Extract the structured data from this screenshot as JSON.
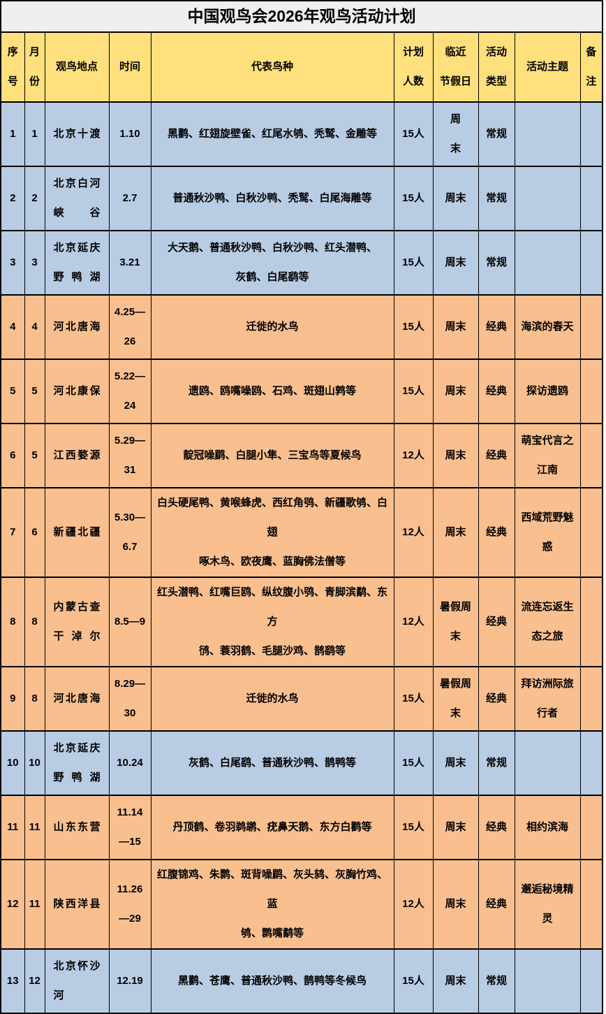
{
  "title": "中国观鸟会2026年观鸟活动计划",
  "colors": {
    "regular_row_blue": "#b8cce4",
    "classic_row_orange": "#fabf8f",
    "header_yellow": "#ffe07d",
    "title_gray": "#efefef",
    "border_black": "#000000"
  },
  "table": {
    "headers": {
      "no": "序\n号",
      "month": "月\n份",
      "location": "观鸟地点",
      "time": "时间",
      "species": "代表鸟种",
      "count": "计划\n人数",
      "holiday": "临近\n节假日",
      "type": "活动\n类型",
      "theme": "活动主题",
      "note": "备\n注"
    },
    "rows": [
      {
        "no": "1",
        "month": "1",
        "location": "北京十渡",
        "time": "1.10",
        "species": "黑鹳、红翅旋壁雀、红尾水鸲、秃鹫、金雕等",
        "count": "15人",
        "holiday": "周\n末",
        "type": "常规",
        "theme": "",
        "note": "",
        "variant": "blue"
      },
      {
        "no": "2",
        "month": "2",
        "location": "北京白河\n峡谷",
        "time": "2.7",
        "species": "普通秋沙鸭、白秋沙鸭、秃鹫、白尾海雕等",
        "count": "15人",
        "holiday": "周末",
        "type": "常规",
        "theme": "",
        "note": "",
        "variant": "blue"
      },
      {
        "no": "3",
        "month": "3",
        "location": "北京延庆\n野鸭湖",
        "time": "3.21",
        "species": "大天鹅、普通秋沙鸭、白秋沙鸭、红头潜鸭、\n灰鹤、白尾鹞等",
        "count": "15人",
        "holiday": "周末",
        "type": "常规",
        "theme": "",
        "note": "",
        "variant": "blue"
      },
      {
        "no": "4",
        "month": "4",
        "location": "河北唐海",
        "time": "4.25—\n26",
        "species": "迁徙的水鸟",
        "count": "15人",
        "holiday": "周末",
        "type": "经典",
        "theme": "海滨的春天",
        "note": "",
        "variant": "orange"
      },
      {
        "no": "5",
        "month": "5",
        "location": "河北康保",
        "time": "5.22—\n24",
        "species": "遗鸥、鸥嘴噪鸥、石鸡、斑翅山鹑等",
        "count": "15人",
        "holiday": "周末",
        "type": "经典",
        "theme": "探访遗鸥",
        "note": "",
        "variant": "orange"
      },
      {
        "no": "6",
        "month": "5",
        "location": "江西婺源",
        "time": "5.29—\n31",
        "species": "靛冠噪鹛、白腿小隼、三宝鸟等夏候鸟",
        "count": "12人",
        "holiday": "周末",
        "type": "经典",
        "theme": "萌宝代言之\n江南",
        "note": "",
        "variant": "orange"
      },
      {
        "no": "7",
        "month": "6",
        "location": "新疆北疆",
        "time": "5.30—\n6.7",
        "species": "白头硬尾鸭、黄喉蜂虎、西红角鸮、新疆歌鸲、白翅\n啄木鸟、欧夜鹰、蓝胸佛法僧等",
        "count": "12人",
        "holiday": "周末",
        "type": "经典",
        "theme": "西域荒野魅\n惑",
        "note": "",
        "variant": "orange"
      },
      {
        "no": "8",
        "month": "8",
        "location": "内蒙古查\n干淖尔",
        "time": "8.5—9",
        "species": "红头潜鸭、红嘴巨鸥、纵纹腹小鸮、青脚滨鹬、东方\n鸻、蓑羽鹤、毛腿沙鸡、鹊鹞等",
        "count": "12人",
        "holiday": "暑假周\n末",
        "type": "经典",
        "theme": "流连忘返生\n态之旅",
        "note": "",
        "variant": "orange"
      },
      {
        "no": "9",
        "month": "8",
        "location": "河北唐海",
        "time": "8.29—\n30",
        "species": "迁徙的水鸟",
        "count": "15人",
        "holiday": "暑假周\n末",
        "type": "经典",
        "theme": "拜访洲际旅\n行者",
        "note": "",
        "variant": "orange"
      },
      {
        "no": "10",
        "month": "10",
        "location": "北京延庆\n野鸭湖",
        "time": "10.24",
        "species": "灰鹤、白尾鹞、普通秋沙鸭、鹊鸭等",
        "count": "15人",
        "holiday": "周末",
        "type": "常规",
        "theme": "",
        "note": "",
        "variant": "blue"
      },
      {
        "no": "11",
        "month": "11",
        "location": "山东东营",
        "time": "11.14\n—15",
        "species": "丹顶鹤、卷羽鹈鹕、疣鼻天鹅、东方白鹳等",
        "count": "15人",
        "holiday": "周末",
        "type": "经典",
        "theme": "相约滨海",
        "note": "",
        "variant": "orange"
      },
      {
        "no": "12",
        "month": "11",
        "location": "陕西洋县",
        "time": "11.26\n—29",
        "species": "红腹锦鸡、朱鹮、斑背噪鹛、灰头鸫、灰胸竹鸡、蓝\n鸲、鹮嘴鹬等",
        "count": "12人",
        "holiday": "周末",
        "type": "经典",
        "theme": "邂逅秘境精\n灵",
        "note": "",
        "variant": "orange"
      },
      {
        "no": "13",
        "month": "12",
        "location": "北京怀沙\n河",
        "time": "12.19",
        "species": "黑鹳、苍鹰、普通秋沙鸭、鹊鸭等冬候鸟",
        "count": "15人",
        "holiday": "周末",
        "type": "常规",
        "theme": "",
        "note": "",
        "variant": "blue"
      }
    ]
  }
}
